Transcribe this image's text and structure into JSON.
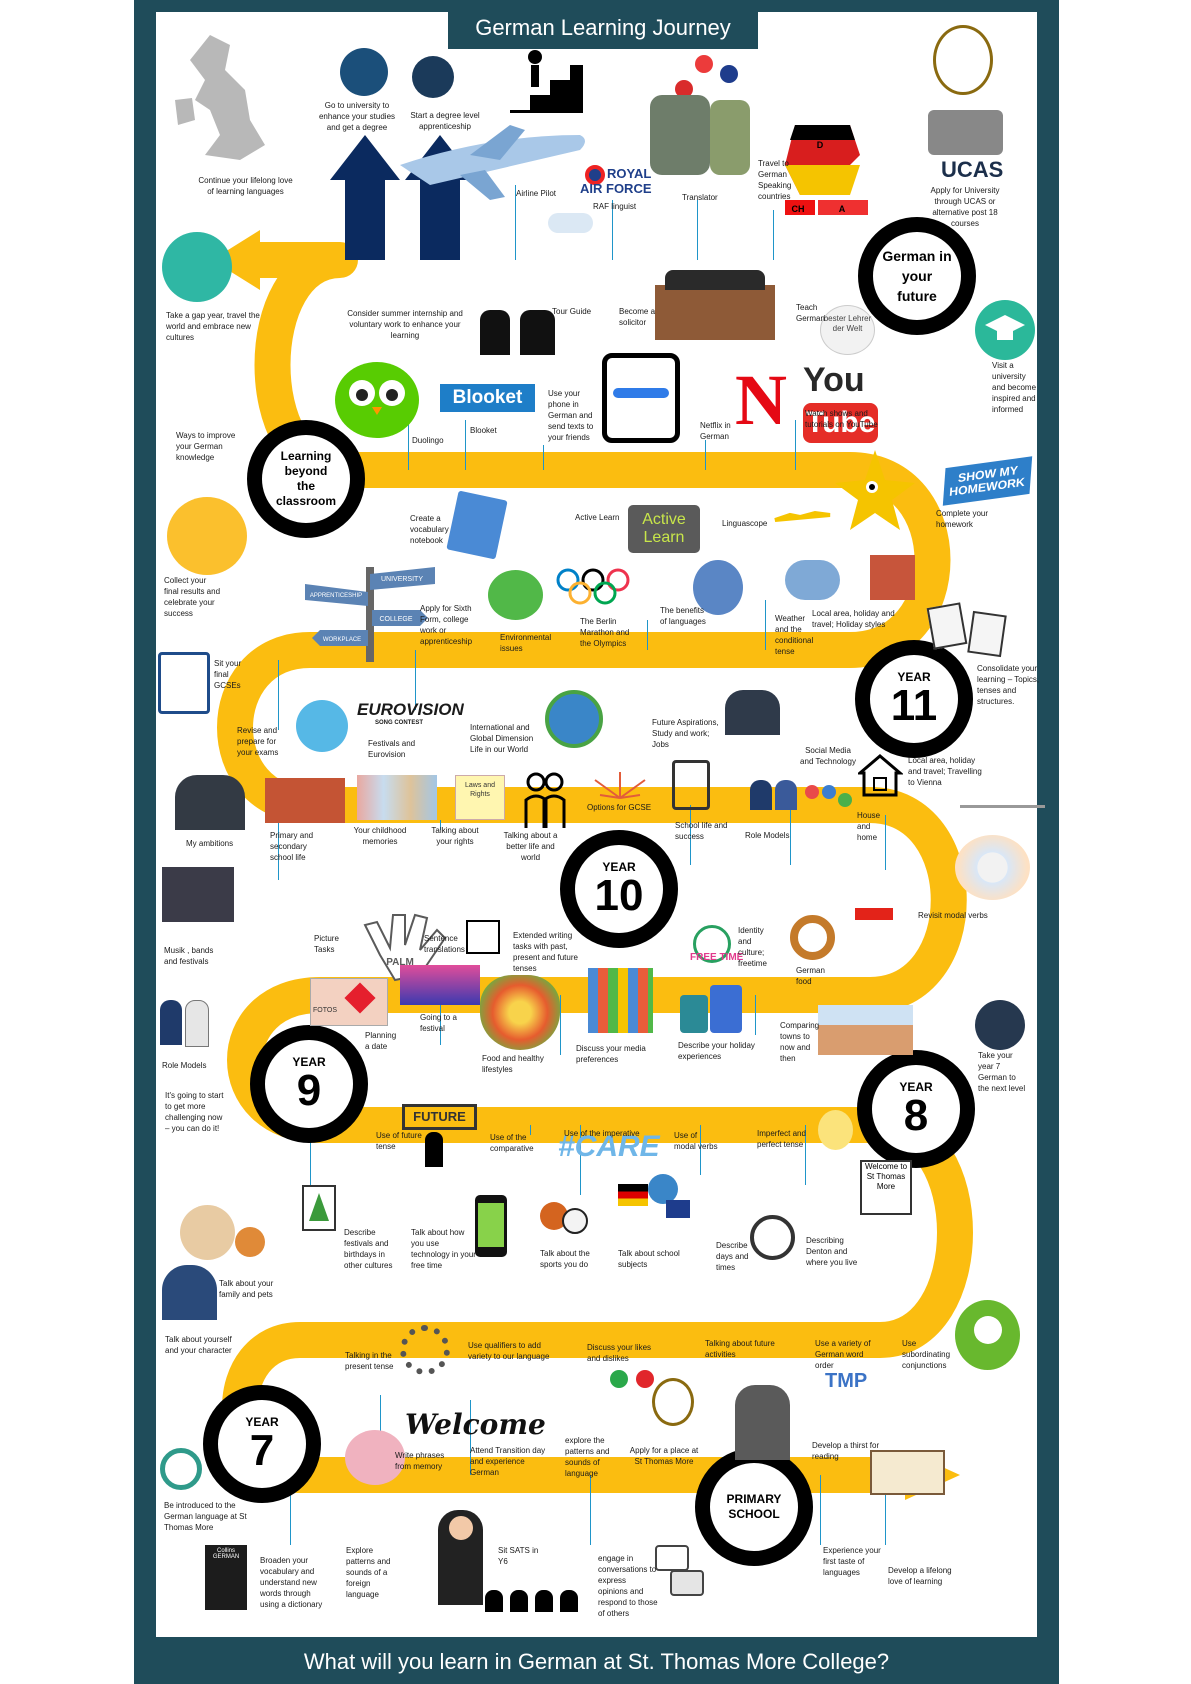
{
  "title": "German Learning Journey",
  "footer": "What will you learn in German at St. Thomas More College?",
  "colors": {
    "frame": "#1f4c5a",
    "road": "#fbbd10",
    "stop_ring": "#000000",
    "connector": "#1f95c9"
  },
  "stops": {
    "future": "German in your future",
    "beyond": "Learning beyond the classroom",
    "year11": {
      "label": "YEAR",
      "num": "11"
    },
    "year10": {
      "label": "YEAR",
      "num": "10"
    },
    "year9": {
      "label": "YEAR",
      "num": "9"
    },
    "year8": {
      "label": "YEAR",
      "num": "8"
    },
    "year7": {
      "label": "YEAR",
      "num": "7"
    },
    "primary": "PRIMARY SCHOOL"
  },
  "labels": {
    "university": "Go to university to enhance your studies and get a degree",
    "apprenticeship": "Start a degree level apprenticeship",
    "lifelong": "Continue your lifelong love of learning languages",
    "pilot": "Airline Pilot",
    "raf": "RAF linguist",
    "translator": "Translator",
    "travel": "Travel to German Speaking countries",
    "ucas": "Apply for University through UCAS or alternative post 18 courses",
    "gap_year": "Take a gap year, travel the world and embrace new cultures",
    "internship": "Consider summer internship and voluntary work to enhance your learning",
    "tour_guide": "Tour Guide",
    "solicitor": "Become a solicitor",
    "teach": "Teach German",
    "visit_uni": "Visit a university and become inspired and informed",
    "ways_improve": "Ways to improve your German knowledge",
    "duolingo": "Duolingo",
    "blooket": "Blooket",
    "phone": "Use your phone in German and send texts to your friends",
    "netflix": "Netflix in German",
    "youtube": "Watch shows and tutorials on YouTube",
    "homework": "Complete your homework",
    "vocab": "Create a vocabulary notebook",
    "active_learn": "Active Learn",
    "linguascope": "Linguascope",
    "collect": "Collect your final results and celebrate your success",
    "sixth_form": "Apply for Sixth Form, college work or apprenticeship",
    "environment": "Environmental issues",
    "berlin": "The Berlin Marathon and the Olympics",
    "benefits": "The benefits of languages",
    "weather": "Weather and the conditional tense",
    "local_area": "Local area, holiday and travel; Holiday styles",
    "sit_gcse": "Sit your final GCSEs",
    "consolidate": "Consolidate your learning – Topics, tenses and structures.",
    "revise": "Revise and prepare for your exams",
    "festivals_euro": "Festivals and Eurovision",
    "international": "International and Global Dimension Life in our World",
    "future_asp": "Future Aspirations, Study and work; Jobs",
    "social_media": "Social Media and Technology",
    "vienna": "Local area, holiday and travel; Travelling to Vienna",
    "ambitions": "My ambitions",
    "primary_secondary": "Primary and secondary school life",
    "childhood": "Your childhood memories",
    "rights": "Talking about your rights",
    "better_life": "Talking about a better life and world",
    "options": "Options for GCSE",
    "school_life": "School life and success",
    "role_models_10": "Role Models",
    "house_home": "House and home",
    "modal_verbs_10": "Revisit modal verbs",
    "musik": "Musik , bands and festivals",
    "picture": "Picture Tasks",
    "sentence": "Sentence translations",
    "extended": "Extended writing tasks with past, present and future tenses",
    "identity": "Identity and culture; freetime",
    "german_food": "German food",
    "role_models_9": "Role Models",
    "planning_date": "Planning a date",
    "going_festival": "Going to a festival",
    "food_healthy": "Food and healthy lifestyles",
    "media": "Discuss your media preferences",
    "holiday_exp": "Describe your holiday experiences",
    "comparing": "Comparing towns to now and then",
    "year7_next": "Take your year 7 German to the next level",
    "challenging": "It's going to start to get more challenging now – you can do it!",
    "future_tense": "Use of future tense",
    "comparative": "Use of the comparative",
    "imperative": "Use of the imperative",
    "modal_verbs_8": "Use of modal verbs",
    "imperfect": "Imperfect and perfect tense",
    "welcome_sign": "Welcome to St Thomas More",
    "festivals_cultures": "Describe festivals and birthdays in other cultures",
    "technology": "Talk about how you use technology in your free time",
    "sports": "Talk about the sports you do",
    "school_subjects": "Talk about school subjects",
    "days_times": "Describe days and times",
    "denton": "Describing Denton and where you live",
    "family_pets": "Talk about your family and pets",
    "character": "Talk about yourself and your character",
    "present_tense": "Talking in the present tense",
    "qualifiers": "Use qualifiers to add variety to our language",
    "likes": "Discuss your likes and dislikes",
    "future_acts": "Talking about future activities",
    "word_order": "Use a variety of German word order",
    "conjunctions": "Use subordinating conjunctions",
    "introduced": "Be introduced to the German language at St Thomas More",
    "write_phrases": "Write phrases from memory",
    "transition": "Attend Transition day and experience German",
    "explore_sounds": "explore the patterns and sounds of language",
    "apply_place": "Apply for a place at St Thomas More",
    "thirst": "Develop a thirst for reading",
    "broaden": "Broaden your vocabulary and understand new words through using a dictionary",
    "explore_patterns": "Explore patterns and sounds of a foreign language",
    "sats": "Sit SATS in Y6",
    "engage": "engage in conversations to express opinions and respond to those of others",
    "first_taste": "Experience your first taste of languages",
    "lifelong_learning": "Develop a lifelong love of learning"
  },
  "logos": {
    "raf_royal": "ROYAL",
    "raf_airforce": "AIR FORCE",
    "ucas": "UCAS",
    "youtube_you": "You",
    "youtube_tube": "Tube",
    "netflix": "N",
    "blooket": "Blooket",
    "active_learn": "Active Learn",
    "show_my_homework": "SHOW MY HOMEWORK",
    "eurovision": "EUROVISION",
    "eurovision_sub": "SONG CONTEST",
    "care": "#CARE",
    "future_arrow": "FUTURE",
    "welcome_script": "Welcome",
    "tmp": "TMP",
    "palm": "PALM",
    "fotos": "FOTOS",
    "free_time": "FREE TIME",
    "bester_lehrer": "bester Lehrer der Welt",
    "collins": "Collins GERMAN",
    "map_d": "D",
    "map_ch": "CH",
    "map_a": "A",
    "signpost_university": "UNIVERSITY",
    "signpost_apprenticeship": "APPRENTICESHIP",
    "signpost_college": "COLLEGE",
    "signpost_workplace": "WORKPLACE",
    "rights_card": "Laws and Rights"
  }
}
